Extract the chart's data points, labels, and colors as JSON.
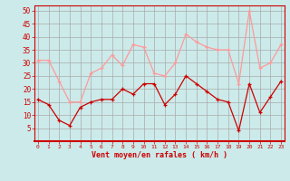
{
  "hours": [
    0,
    1,
    2,
    3,
    4,
    5,
    6,
    7,
    8,
    9,
    10,
    11,
    12,
    13,
    14,
    15,
    16,
    17,
    18,
    19,
    20,
    21,
    22,
    23
  ],
  "wind_avg": [
    16,
    14,
    8,
    6,
    13,
    15,
    16,
    16,
    20,
    18,
    22,
    22,
    14,
    18,
    25,
    22,
    19,
    16,
    15,
    4,
    22,
    11,
    17,
    23
  ],
  "wind_gust": [
    31,
    31,
    23,
    15,
    15,
    26,
    28,
    33,
    29,
    37,
    36,
    26,
    25,
    30,
    41,
    38,
    36,
    35,
    35,
    22,
    50,
    28,
    30,
    37
  ],
  "wind_avg_color": "#cc0000",
  "wind_gust_color": "#ff9999",
  "bg_color": "#cceaea",
  "grid_color": "#aaaaaa",
  "xlabel": "Vent moyen/en rafales ( km/h )",
  "xlabel_color": "#cc0000",
  "tick_color": "#cc0000",
  "ylim": [
    0,
    52
  ],
  "yticks": [
    5,
    10,
    15,
    20,
    25,
    30,
    35,
    40,
    45,
    50
  ],
  "xticks": [
    0,
    1,
    2,
    3,
    4,
    5,
    6,
    7,
    8,
    9,
    10,
    11,
    12,
    13,
    14,
    15,
    16,
    17,
    18,
    19,
    20,
    21,
    22,
    23
  ],
  "marker_size": 2.5,
  "line_width": 0.9
}
